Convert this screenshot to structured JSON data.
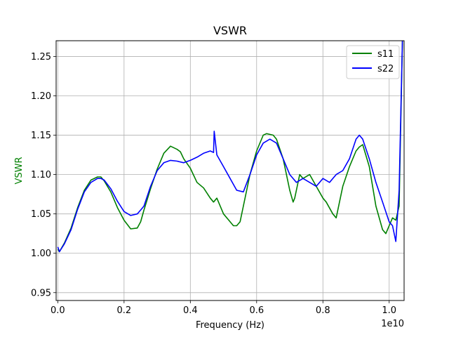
{
  "chart_data": {
    "type": "line",
    "title": "VSWR",
    "xlabel": "Frequency (Hz)",
    "ylabel": "VSWR",
    "ylabel_color": "#008000",
    "x_offset_label": "1e10",
    "x_scale": 10000000000,
    "xlim": [
      -0.005,
      1.045
    ],
    "ylim": [
      0.94,
      1.27
    ],
    "x_ticks": [
      0.0,
      0.2,
      0.4,
      0.6,
      0.8,
      1.0
    ],
    "x_tick_labels": [
      "0.0",
      "0.2",
      "0.4",
      "0.6",
      "0.8",
      "1.0"
    ],
    "y_ticks": [
      0.95,
      1.0,
      1.05,
      1.1,
      1.15,
      1.2,
      1.25
    ],
    "y_tick_labels": [
      "0.95",
      "1.00",
      "1.05",
      "1.10",
      "1.15",
      "1.20",
      "1.25"
    ],
    "grid": true,
    "legend_position": "top-right",
    "series": [
      {
        "name": "s11",
        "color": "#008000",
        "x": [
          0.0,
          0.005,
          0.02,
          0.04,
          0.06,
          0.08,
          0.1,
          0.12,
          0.13,
          0.14,
          0.16,
          0.18,
          0.2,
          0.22,
          0.24,
          0.25,
          0.26,
          0.28,
          0.3,
          0.32,
          0.34,
          0.36,
          0.37,
          0.38,
          0.4,
          0.42,
          0.44,
          0.46,
          0.47,
          0.48,
          0.5,
          0.52,
          0.53,
          0.54,
          0.55,
          0.56,
          0.58,
          0.6,
          0.62,
          0.63,
          0.65,
          0.66,
          0.68,
          0.7,
          0.71,
          0.715,
          0.73,
          0.74,
          0.76,
          0.78,
          0.8,
          0.81,
          0.83,
          0.84,
          0.85,
          0.86,
          0.88,
          0.9,
          0.91,
          0.92,
          0.94,
          0.96,
          0.98,
          0.99,
          1.0,
          1.01,
          1.02,
          1.03,
          1.04
        ],
        "values": [
          1.005,
          1.002,
          1.013,
          1.032,
          1.058,
          1.08,
          1.093,
          1.097,
          1.097,
          1.092,
          1.078,
          1.058,
          1.042,
          1.031,
          1.032,
          1.04,
          1.055,
          1.082,
          1.107,
          1.127,
          1.136,
          1.132,
          1.129,
          1.12,
          1.108,
          1.09,
          1.083,
          1.07,
          1.065,
          1.07,
          1.05,
          1.04,
          1.035,
          1.035,
          1.04,
          1.06,
          1.1,
          1.13,
          1.15,
          1.152,
          1.15,
          1.145,
          1.12,
          1.08,
          1.065,
          1.07,
          1.1,
          1.095,
          1.1,
          1.085,
          1.07,
          1.065,
          1.05,
          1.045,
          1.065,
          1.085,
          1.11,
          1.13,
          1.135,
          1.138,
          1.11,
          1.06,
          1.03,
          1.025,
          1.035,
          1.045,
          1.042,
          1.06,
          1.27
        ]
      },
      {
        "name": "s22",
        "color": "#0000ff",
        "x": [
          0.0,
          0.005,
          0.02,
          0.04,
          0.06,
          0.08,
          0.1,
          0.12,
          0.13,
          0.14,
          0.16,
          0.18,
          0.2,
          0.22,
          0.24,
          0.25,
          0.26,
          0.28,
          0.3,
          0.32,
          0.34,
          0.36,
          0.38,
          0.4,
          0.42,
          0.44,
          0.46,
          0.47,
          0.472,
          0.48,
          0.5,
          0.52,
          0.54,
          0.56,
          0.58,
          0.6,
          0.62,
          0.64,
          0.66,
          0.68,
          0.7,
          0.72,
          0.74,
          0.76,
          0.78,
          0.8,
          0.82,
          0.84,
          0.86,
          0.88,
          0.9,
          0.91,
          0.92,
          0.94,
          0.96,
          0.98,
          1.0,
          1.01,
          1.02,
          1.03,
          1.04
        ],
        "values": [
          1.008,
          1.002,
          1.012,
          1.03,
          1.056,
          1.078,
          1.09,
          1.095,
          1.095,
          1.093,
          1.082,
          1.066,
          1.053,
          1.048,
          1.05,
          1.055,
          1.06,
          1.085,
          1.105,
          1.115,
          1.118,
          1.117,
          1.115,
          1.118,
          1.122,
          1.127,
          1.13,
          1.128,
          1.155,
          1.125,
          1.11,
          1.095,
          1.08,
          1.078,
          1.1,
          1.125,
          1.14,
          1.145,
          1.14,
          1.12,
          1.1,
          1.09,
          1.095,
          1.09,
          1.085,
          1.095,
          1.09,
          1.1,
          1.105,
          1.12,
          1.145,
          1.15,
          1.145,
          1.12,
          1.09,
          1.065,
          1.04,
          1.035,
          1.015,
          1.08,
          1.27
        ]
      }
    ]
  }
}
